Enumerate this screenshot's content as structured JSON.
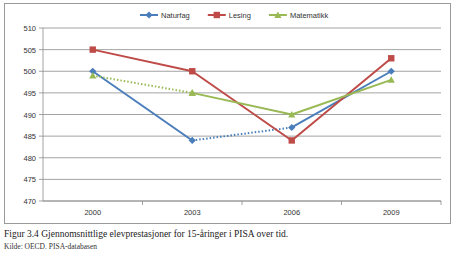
{
  "chart_data": {
    "type": "line",
    "title": "Figur 3.4  Gjennomsnittlige elevprestasjoner for 15-åringer i PISA over tid.",
    "annotations": [
      "Kilde: OECD. PISA-databasen"
    ],
    "categories": [
      "2000",
      "2003",
      "2006",
      "2009"
    ],
    "ylim": [
      470,
      510
    ],
    "yticks": [
      470,
      475,
      480,
      485,
      490,
      495,
      500,
      505,
      510
    ],
    "grid": true,
    "legend": "top",
    "series": [
      {
        "name": "Naturfag",
        "color": "#4a7ebb",
        "marker": "diamond",
        "line_style": "solid",
        "values": [
          500,
          484,
          null,
          null
        ]
      },
      {
        "name": "Naturfag",
        "color": "#4a7ebb",
        "marker": "none",
        "line_style": "dotted",
        "values": [
          null,
          484,
          487,
          null
        ]
      },
      {
        "name": "Naturfag",
        "color": "#4a7ebb",
        "marker": "diamond",
        "line_style": "solid",
        "values": [
          null,
          null,
          487,
          500
        ]
      },
      {
        "name": "Lesing",
        "color": "#be4b48",
        "marker": "square",
        "line_style": "solid",
        "values": [
          505,
          500,
          484,
          503
        ]
      },
      {
        "name": "Matematikk",
        "color": "#98b954",
        "marker": "triangle",
        "line_style": "dotted",
        "values": [
          499,
          495,
          null,
          null
        ]
      },
      {
        "name": "Matematikk",
        "color": "#98b954",
        "marker": "triangle",
        "line_style": "solid",
        "values": [
          null,
          495,
          490,
          498
        ]
      }
    ]
  }
}
